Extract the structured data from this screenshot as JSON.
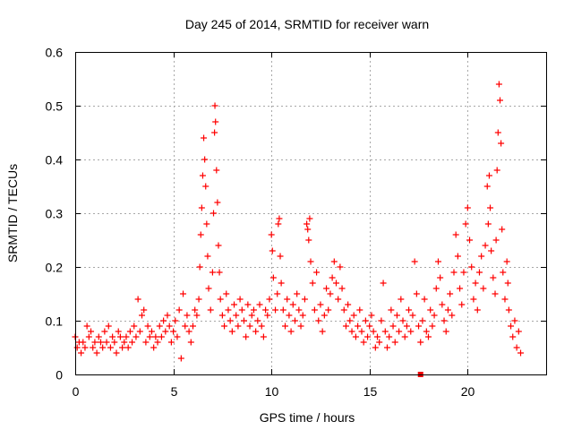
{
  "chart_data": {
    "type": "scatter",
    "title": "Day 245 of 2014, SRMTID for receiver warn",
    "xlabel": "GPS time / hours",
    "ylabel": "SRMTID / TECUs",
    "xlim": [
      0,
      24
    ],
    "ylim": [
      0,
      0.6
    ],
    "x_ticks": [
      0,
      5,
      10,
      15,
      20
    ],
    "x_tick_labels": [
      "0",
      "5",
      "10",
      "15",
      "20"
    ],
    "y_ticks": [
      0,
      0.1,
      0.2,
      0.3,
      0.4,
      0.5,
      0.6
    ],
    "y_tick_labels": [
      "0",
      "0.1",
      "0.2",
      "0.3",
      "0.4",
      "0.5",
      "0.6"
    ],
    "grid": true,
    "legend": "none",
    "colors": {
      "series": "#ff0000",
      "marker": "#ee0000",
      "grid": "#a8a8a8",
      "axes": "#000000"
    },
    "x_range": [
      0.0,
      22.7
    ],
    "marker_x": [
      17.6
    ],
    "series": [
      {
        "name": "SRMTID",
        "marker": "plus",
        "points": [
          [
            0.0,
            0.07
          ],
          [
            0.1,
            0.05
          ],
          [
            0.2,
            0.06
          ],
          [
            0.3,
            0.04
          ],
          [
            0.4,
            0.06
          ],
          [
            0.5,
            0.05
          ],
          [
            0.6,
            0.09
          ],
          [
            0.7,
            0.07
          ],
          [
            0.8,
            0.08
          ],
          [
            0.9,
            0.05
          ],
          [
            1.0,
            0.06
          ],
          [
            1.1,
            0.04
          ],
          [
            1.2,
            0.07
          ],
          [
            1.3,
            0.06
          ],
          [
            1.4,
            0.05
          ],
          [
            1.5,
            0.08
          ],
          [
            1.6,
            0.06
          ],
          [
            1.7,
            0.09
          ],
          [
            1.8,
            0.05
          ],
          [
            1.9,
            0.07
          ],
          [
            2.0,
            0.06
          ],
          [
            2.1,
            0.04
          ],
          [
            2.2,
            0.08
          ],
          [
            2.3,
            0.07
          ],
          [
            2.4,
            0.05
          ],
          [
            2.5,
            0.06
          ],
          [
            2.6,
            0.07
          ],
          [
            2.7,
            0.05
          ],
          [
            2.8,
            0.08
          ],
          [
            2.9,
            0.06
          ],
          [
            3.0,
            0.09
          ],
          [
            3.1,
            0.07
          ],
          [
            3.2,
            0.14
          ],
          [
            3.3,
            0.08
          ],
          [
            3.4,
            0.11
          ],
          [
            3.5,
            0.12
          ],
          [
            3.6,
            0.06
          ],
          [
            3.7,
            0.09
          ],
          [
            3.8,
            0.07
          ],
          [
            3.9,
            0.08
          ],
          [
            4.0,
            0.05
          ],
          [
            4.1,
            0.07
          ],
          [
            4.2,
            0.06
          ],
          [
            4.3,
            0.09
          ],
          [
            4.4,
            0.07
          ],
          [
            4.5,
            0.1
          ],
          [
            4.6,
            0.08
          ],
          [
            4.7,
            0.11
          ],
          [
            4.8,
            0.09
          ],
          [
            4.9,
            0.06
          ],
          [
            5.0,
            0.08
          ],
          [
            5.1,
            0.1
          ],
          [
            5.2,
            0.07
          ],
          [
            5.3,
            0.12
          ],
          [
            5.4,
            0.03
          ],
          [
            5.5,
            0.15
          ],
          [
            5.6,
            0.09
          ],
          [
            5.7,
            0.11
          ],
          [
            5.8,
            0.08
          ],
          [
            5.9,
            0.06
          ],
          [
            6.0,
            0.09
          ],
          [
            6.1,
            0.12
          ],
          [
            6.2,
            0.11
          ],
          [
            6.3,
            0.14
          ],
          [
            6.35,
            0.2
          ],
          [
            6.4,
            0.26
          ],
          [
            6.45,
            0.31
          ],
          [
            6.5,
            0.37
          ],
          [
            6.55,
            0.44
          ],
          [
            6.6,
            0.4
          ],
          [
            6.65,
            0.35
          ],
          [
            6.7,
            0.28
          ],
          [
            6.75,
            0.22
          ],
          [
            6.8,
            0.16
          ],
          [
            6.9,
            0.12
          ],
          [
            7.0,
            0.19
          ],
          [
            7.05,
            0.3
          ],
          [
            7.1,
            0.45
          ],
          [
            7.12,
            0.5
          ],
          [
            7.15,
            0.47
          ],
          [
            7.2,
            0.38
          ],
          [
            7.25,
            0.32
          ],
          [
            7.3,
            0.24
          ],
          [
            7.35,
            0.19
          ],
          [
            7.4,
            0.14
          ],
          [
            7.5,
            0.11
          ],
          [
            7.6,
            0.09
          ],
          [
            7.7,
            0.15
          ],
          [
            7.8,
            0.12
          ],
          [
            7.9,
            0.1
          ],
          [
            8.0,
            0.08
          ],
          [
            8.1,
            0.13
          ],
          [
            8.2,
            0.11
          ],
          [
            8.3,
            0.09
          ],
          [
            8.4,
            0.14
          ],
          [
            8.5,
            0.12
          ],
          [
            8.6,
            0.1
          ],
          [
            8.7,
            0.07
          ],
          [
            8.8,
            0.13
          ],
          [
            8.9,
            0.09
          ],
          [
            9.0,
            0.11
          ],
          [
            9.1,
            0.12
          ],
          [
            9.2,
            0.08
          ],
          [
            9.3,
            0.1
          ],
          [
            9.4,
            0.13
          ],
          [
            9.5,
            0.09
          ],
          [
            9.6,
            0.07
          ],
          [
            9.7,
            0.12
          ],
          [
            9.8,
            0.11
          ],
          [
            9.9,
            0.14
          ],
          [
            10.0,
            0.26
          ],
          [
            10.05,
            0.23
          ],
          [
            10.1,
            0.18
          ],
          [
            10.2,
            0.12
          ],
          [
            10.3,
            0.15
          ],
          [
            10.35,
            0.28
          ],
          [
            10.4,
            0.29
          ],
          [
            10.45,
            0.22
          ],
          [
            10.5,
            0.17
          ],
          [
            10.6,
            0.12
          ],
          [
            10.7,
            0.09
          ],
          [
            10.8,
            0.14
          ],
          [
            10.9,
            0.11
          ],
          [
            11.0,
            0.08
          ],
          [
            11.1,
            0.13
          ],
          [
            11.2,
            0.1
          ],
          [
            11.3,
            0.15
          ],
          [
            11.4,
            0.12
          ],
          [
            11.5,
            0.09
          ],
          [
            11.6,
            0.11
          ],
          [
            11.7,
            0.14
          ],
          [
            11.8,
            0.28
          ],
          [
            11.85,
            0.27
          ],
          [
            11.9,
            0.25
          ],
          [
            11.95,
            0.29
          ],
          [
            12.0,
            0.21
          ],
          [
            12.1,
            0.17
          ],
          [
            12.2,
            0.12
          ],
          [
            12.3,
            0.19
          ],
          [
            12.4,
            0.1
          ],
          [
            12.5,
            0.13
          ],
          [
            12.6,
            0.08
          ],
          [
            12.7,
            0.11
          ],
          [
            12.8,
            0.16
          ],
          [
            12.9,
            0.12
          ],
          [
            13.0,
            0.15
          ],
          [
            13.1,
            0.18
          ],
          [
            13.2,
            0.21
          ],
          [
            13.3,
            0.17
          ],
          [
            13.4,
            0.14
          ],
          [
            13.5,
            0.2
          ],
          [
            13.6,
            0.16
          ],
          [
            13.7,
            0.12
          ],
          [
            13.8,
            0.09
          ],
          [
            13.9,
            0.13
          ],
          [
            14.0,
            0.1
          ],
          [
            14.1,
            0.08
          ],
          [
            14.2,
            0.11
          ],
          [
            14.3,
            0.07
          ],
          [
            14.4,
            0.09
          ],
          [
            14.5,
            0.12
          ],
          [
            14.6,
            0.08
          ],
          [
            14.7,
            0.06
          ],
          [
            14.8,
            0.1
          ],
          [
            14.9,
            0.07
          ],
          [
            15.0,
            0.09
          ],
          [
            15.1,
            0.11
          ],
          [
            15.2,
            0.08
          ],
          [
            15.3,
            0.05
          ],
          [
            15.4,
            0.07
          ],
          [
            15.5,
            0.06
          ],
          [
            15.6,
            0.1
          ],
          [
            15.7,
            0.17
          ],
          [
            15.8,
            0.08
          ],
          [
            15.9,
            0.05
          ],
          [
            16.0,
            0.07
          ],
          [
            16.1,
            0.12
          ],
          [
            16.2,
            0.09
          ],
          [
            16.3,
            0.06
          ],
          [
            16.4,
            0.11
          ],
          [
            16.5,
            0.08
          ],
          [
            16.6,
            0.14
          ],
          [
            16.7,
            0.1
          ],
          [
            16.8,
            0.07
          ],
          [
            16.9,
            0.09
          ],
          [
            17.0,
            0.12
          ],
          [
            17.1,
            0.08
          ],
          [
            17.2,
            0.11
          ],
          [
            17.3,
            0.21
          ],
          [
            17.4,
            0.15
          ],
          [
            17.5,
            0.09
          ],
          [
            17.6,
            0.06
          ],
          [
            17.7,
            0.1
          ],
          [
            17.8,
            0.14
          ],
          [
            17.9,
            0.08
          ],
          [
            18.0,
            0.07
          ],
          [
            18.1,
            0.12
          ],
          [
            18.2,
            0.09
          ],
          [
            18.3,
            0.11
          ],
          [
            18.4,
            0.16
          ],
          [
            18.5,
            0.21
          ],
          [
            18.6,
            0.18
          ],
          [
            18.7,
            0.13
          ],
          [
            18.8,
            0.1
          ],
          [
            18.9,
            0.08
          ],
          [
            19.0,
            0.12
          ],
          [
            19.1,
            0.15
          ],
          [
            19.2,
            0.11
          ],
          [
            19.3,
            0.19
          ],
          [
            19.4,
            0.26
          ],
          [
            19.5,
            0.22
          ],
          [
            19.6,
            0.16
          ],
          [
            19.7,
            0.13
          ],
          [
            19.8,
            0.19
          ],
          [
            19.9,
            0.28
          ],
          [
            20.0,
            0.31
          ],
          [
            20.1,
            0.25
          ],
          [
            20.2,
            0.2
          ],
          [
            20.3,
            0.14
          ],
          [
            20.4,
            0.17
          ],
          [
            20.5,
            0.12
          ],
          [
            20.6,
            0.19
          ],
          [
            20.7,
            0.22
          ],
          [
            20.8,
            0.16
          ],
          [
            20.9,
            0.24
          ],
          [
            21.0,
            0.35
          ],
          [
            21.05,
            0.28
          ],
          [
            21.1,
            0.37
          ],
          [
            21.15,
            0.31
          ],
          [
            21.2,
            0.23
          ],
          [
            21.3,
            0.18
          ],
          [
            21.4,
            0.15
          ],
          [
            21.45,
            0.25
          ],
          [
            21.5,
            0.38
          ],
          [
            21.55,
            0.45
          ],
          [
            21.6,
            0.54
          ],
          [
            21.65,
            0.51
          ],
          [
            21.7,
            0.43
          ],
          [
            21.75,
            0.27
          ],
          [
            21.8,
            0.19
          ],
          [
            21.9,
            0.14
          ],
          [
            22.0,
            0.21
          ],
          [
            22.05,
            0.17
          ],
          [
            22.1,
            0.12
          ],
          [
            22.2,
            0.09
          ],
          [
            22.3,
            0.07
          ],
          [
            22.4,
            0.1
          ],
          [
            22.5,
            0.05
          ],
          [
            22.6,
            0.08
          ],
          [
            22.7,
            0.04
          ]
        ]
      }
    ]
  }
}
